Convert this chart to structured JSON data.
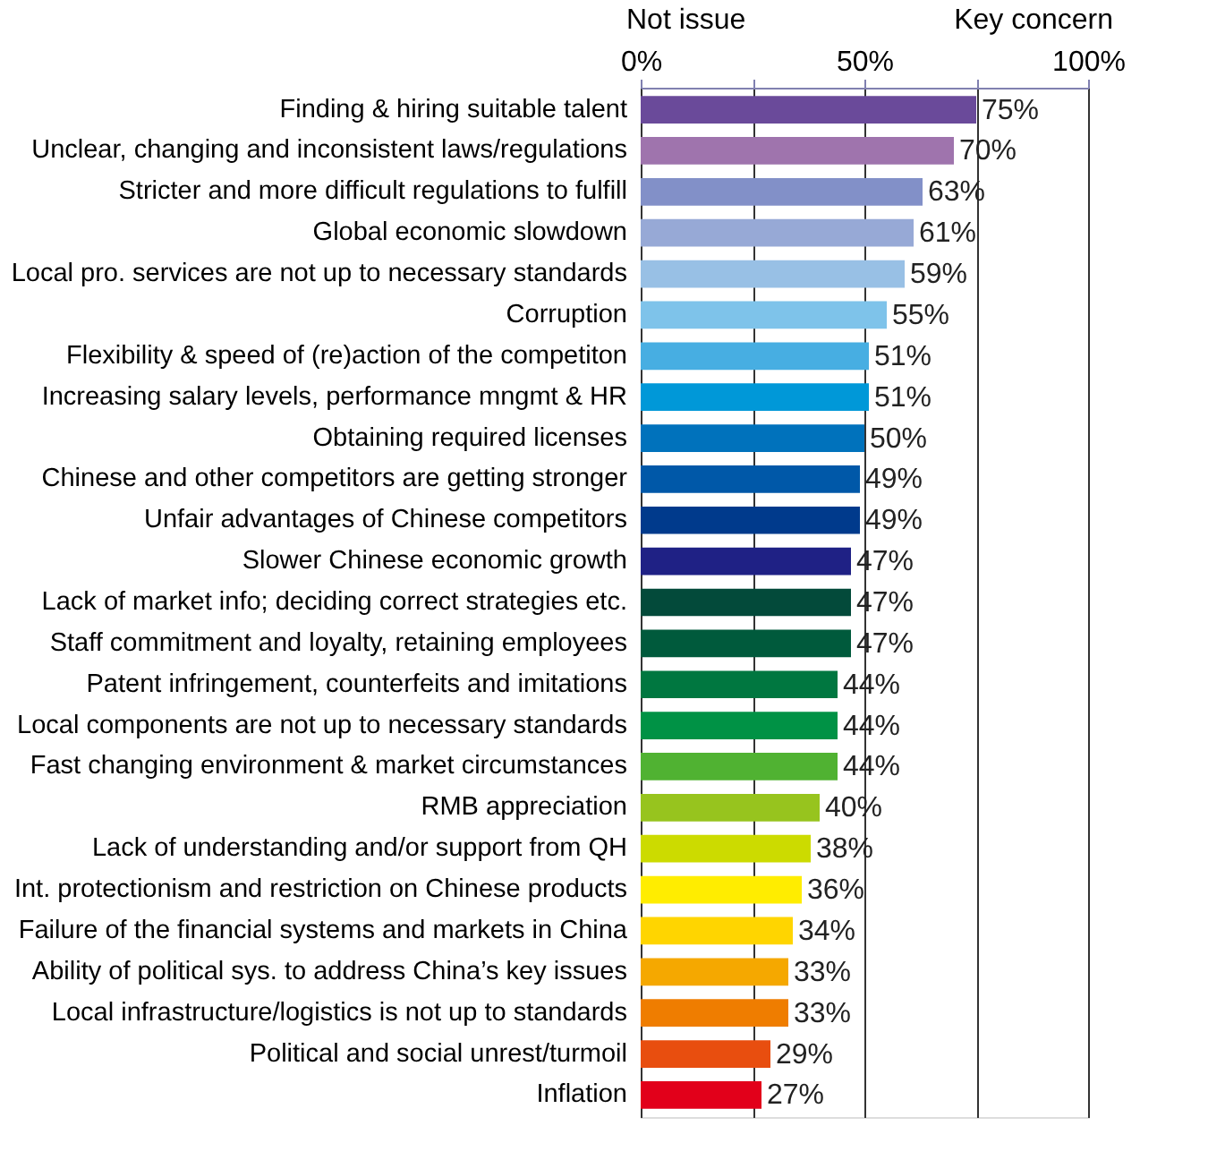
{
  "chart_data": {
    "type": "bar",
    "orientation": "horizontal",
    "categories": [
      "Finding & hiring suitable talent",
      "Unclear, changing and inconsistent laws/regulations",
      "Stricter and more difficult regulations to fulfill",
      "Global economic slowdown",
      "Local pro. services are not up to necessary standards",
      "Corruption",
      "Flexibility & speed of (re)action of the competiton",
      "Increasing salary levels, performance mngmt & HR",
      "Obtaining required licenses",
      "Chinese and other competitors are getting stronger",
      "Unfair advantages of Chinese competitors",
      "Slower Chinese economic growth",
      "Lack of market info; deciding correct strategies etc.",
      "Staff commitment and loyalty, retaining employees",
      "Patent infringement, counterfeits and imitations",
      "Local components are not up to necessary standards",
      "Fast changing environment & market circumstances",
      "RMB appreciation",
      "Lack of understanding and/or support from QH",
      "Int. protectionism and restriction on Chinese products",
      "Failure of the financial systems and markets in China",
      "Ability of political sys. to address China’s key issues",
      "Local infrastructure/logistics is not up to standards",
      "Political and social unrest/turmoil",
      "Inflation"
    ],
    "values": [
      75,
      70,
      63,
      61,
      59,
      55,
      51,
      51,
      50,
      49,
      49,
      47,
      47,
      47,
      44,
      44,
      44,
      40,
      38,
      36,
      34,
      33,
      33,
      29,
      27
    ],
    "value_labels": [
      "75%",
      "70%",
      "63%",
      "61%",
      "59%",
      "55%",
      "51%",
      "51%",
      "50%",
      "49%",
      "49%",
      "47%",
      "47%",
      "47%",
      "44%",
      "44%",
      "44%",
      "40%",
      "38%",
      "36%",
      "34%",
      "33%",
      "33%",
      "29%",
      "27%"
    ],
    "colors": [
      "#6a4a9a",
      "#9f74ad",
      "#8290c8",
      "#97a9d6",
      "#98c0e5",
      "#7ec3ea",
      "#47aee2",
      "#0098d8",
      "#0072bc",
      "#0058a8",
      "#003a8c",
      "#1f2185",
      "#034a3a",
      "#005a3c",
      "#007740",
      "#009245",
      "#50b232",
      "#97c41e",
      "#ccdb00",
      "#ffed00",
      "#ffd500",
      "#f5a800",
      "#ef7d00",
      "#e84e0f",
      "#e2001a"
    ],
    "xlim": [
      0,
      100
    ],
    "xticks": [
      {
        "value": 0,
        "label": "0%"
      },
      {
        "value": 25,
        "label": null
      },
      {
        "value": 50,
        "label": "50%"
      },
      {
        "value": 75,
        "label": null
      },
      {
        "value": 100,
        "label": "100%"
      }
    ],
    "grid": "x",
    "annotations": [
      "Not issue",
      "Key concern"
    ]
  }
}
